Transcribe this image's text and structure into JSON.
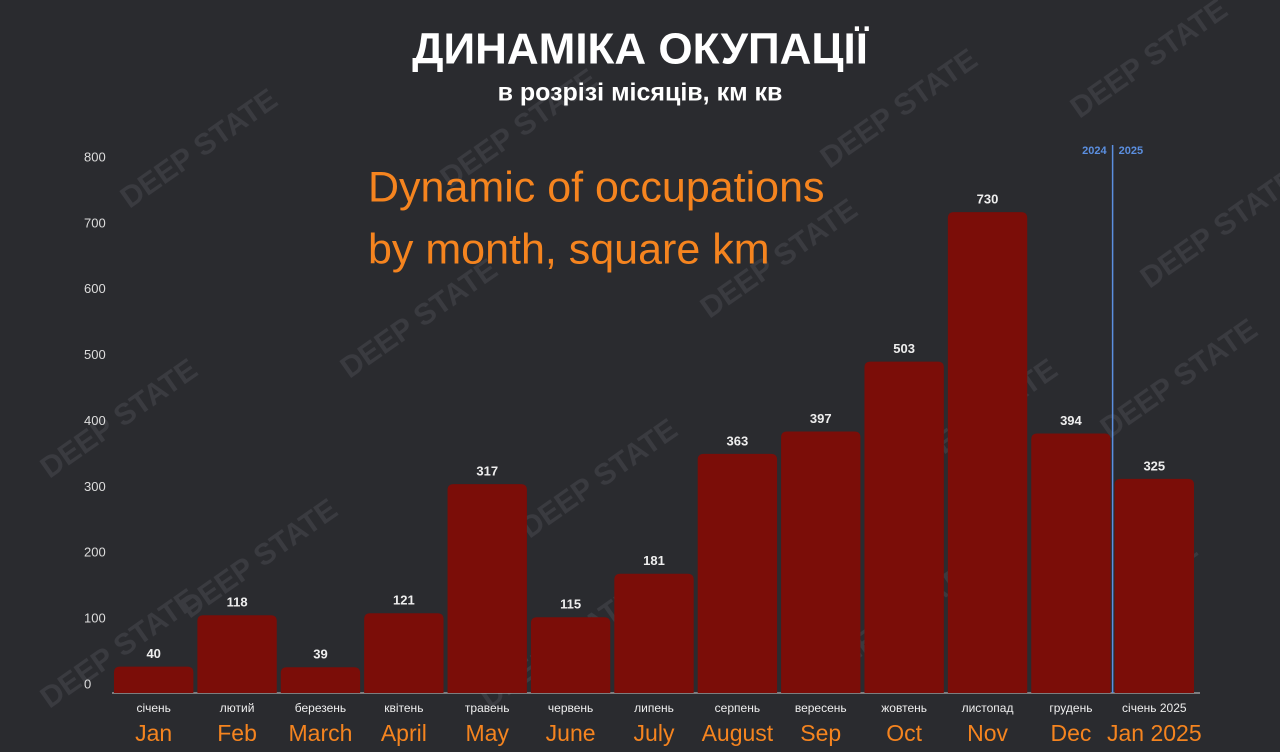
{
  "chart_data": {
    "type": "bar",
    "title": "ДИНАМІКА ОКУПАЦІЇ",
    "subtitle": "в розрізі місяців, км кв",
    "annotation": [
      "Dynamic of occupations",
      "by month, square km"
    ],
    "categories": [
      "січень",
      "лютий",
      "березень",
      "квітень",
      "травень",
      "червень",
      "липень",
      "серпень",
      "вересень",
      "жовтень",
      "листопад",
      "грудень",
      "січень 2025"
    ],
    "translated_categories": [
      "Jan",
      "Feb",
      "March",
      "April",
      "May",
      "June",
      "July",
      "August",
      "Sep",
      "Oct",
      "Nov",
      "Dec",
      "Jan 2025"
    ],
    "values": [
      40,
      118,
      39,
      121,
      317,
      115,
      181,
      363,
      397,
      503,
      730,
      394,
      325
    ],
    "color": "#7b0d08",
    "ylim": [
      0,
      800
    ],
    "yticks": [
      0,
      100,
      200,
      300,
      400,
      500,
      600,
      700,
      800
    ],
    "year_divider": [
      "2024",
      "2025"
    ],
    "watermark": "DEEP STATE"
  }
}
